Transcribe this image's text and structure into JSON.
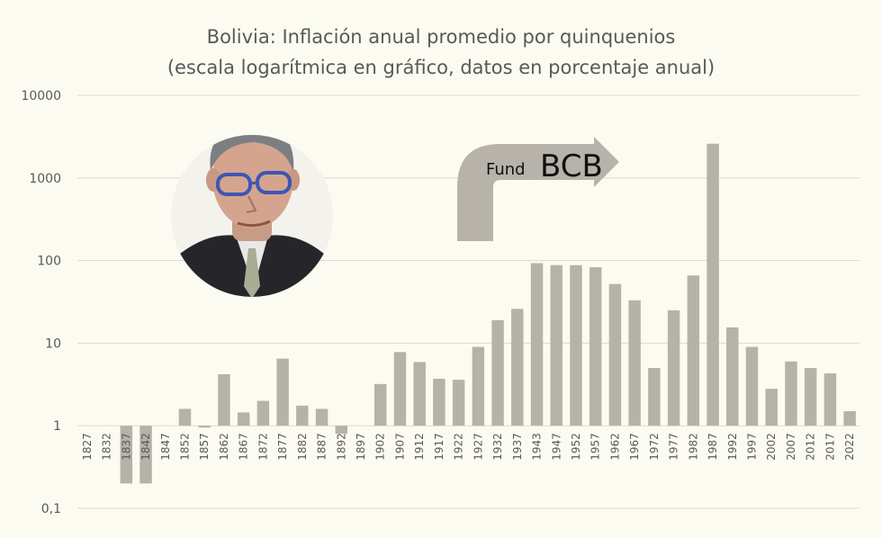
{
  "chart_data": {
    "type": "bar",
    "title": "Bolivia: Inflación anual promedio por quinquenios",
    "subtitle": "(escala logarítmica en gráfico, datos en porcentaje anual)",
    "yscale": "log",
    "ylim": [
      0.1,
      10000
    ],
    "yticks": [
      "0,1",
      "1",
      "10",
      "100",
      "1000",
      "10000"
    ],
    "ytick_values": [
      0.1,
      1,
      10,
      100,
      1000,
      10000
    ],
    "grid": true,
    "categories": [
      "1827",
      "1832",
      "1837",
      "1842",
      "1847",
      "1852",
      "1857",
      "1862",
      "1867",
      "1872",
      "1877",
      "1882",
      "1887",
      "1892",
      "1897",
      "1902",
      "1907",
      "1912",
      "1917",
      "1922",
      "1927",
      "1932",
      "1937",
      "1943",
      "1947",
      "1952",
      "1957",
      "1962",
      "1967",
      "1972",
      "1977",
      "1982",
      "1987",
      "1992",
      "1997",
      "2002",
      "2007",
      "2012",
      "2017",
      "2022"
    ],
    "values": [
      1,
      1,
      0.2,
      0.2,
      1,
      1.6,
      0.95,
      4.2,
      1.45,
      2.0,
      6.5,
      1.75,
      1.6,
      0.8,
      1,
      3.2,
      7.8,
      5.9,
      3.7,
      3.6,
      9.0,
      19,
      26,
      93,
      88,
      88,
      83,
      52,
      33,
      5.0,
      25,
      66,
      2600,
      15.5,
      9.0,
      2.8,
      6.0,
      5.0,
      4.3,
      1.5
    ],
    "annotations": {
      "arrow_small": "Fund",
      "arrow_big": "BCB"
    },
    "bar_color": "#b6b2aa",
    "background": "#fcfbf1"
  },
  "photo": {
    "icon": "portrait-photo"
  }
}
